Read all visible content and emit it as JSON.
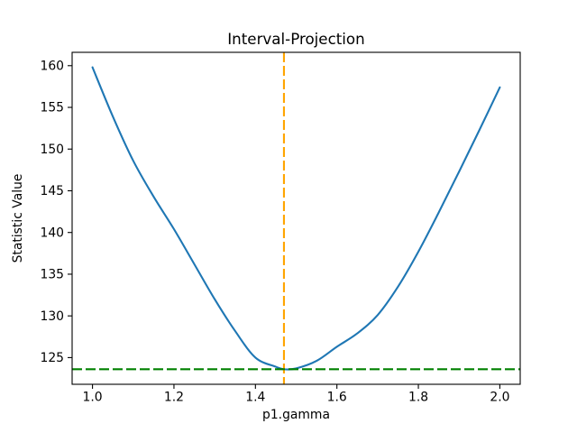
{
  "chart_data": {
    "type": "line",
    "title": "Interval-Projection",
    "xlabel": "p1.gamma",
    "ylabel": "Statistic Value",
    "xlim": [
      0.95,
      2.05
    ],
    "ylim": [
      121.8,
      161.6
    ],
    "xticks": [
      1.0,
      1.2,
      1.4,
      1.6,
      1.8,
      2.0
    ],
    "xtick_labels": [
      "1.0",
      "1.2",
      "1.4",
      "1.6",
      "1.8",
      "2.0"
    ],
    "yticks": [
      125,
      130,
      135,
      140,
      145,
      150,
      155,
      160
    ],
    "ytick_labels": [
      "125",
      "130",
      "135",
      "140",
      "145",
      "150",
      "155",
      "160"
    ],
    "grid": false,
    "legend": null,
    "colors": {
      "curve": "#1f77b4",
      "vline": "#ffa500",
      "hline": "#008000",
      "spine": "#000000",
      "background": "#ffffff"
    },
    "series": [
      {
        "name": "profile-statistic-curve",
        "color": "#1f77b4",
        "style": "solid",
        "x": [
          1.0,
          1.05,
          1.1,
          1.15,
          1.2,
          1.25,
          1.3,
          1.35,
          1.4,
          1.45,
          1.47,
          1.5,
          1.55,
          1.6,
          1.65,
          1.7,
          1.75,
          1.8,
          1.85,
          1.9,
          1.95,
          2.0
        ],
        "y": [
          159.8,
          153.9,
          148.6,
          144.3,
          140.4,
          136.2,
          132.0,
          128.2,
          125.0,
          123.9,
          123.6,
          123.7,
          124.6,
          126.3,
          127.9,
          130.1,
          133.5,
          137.7,
          142.4,
          147.3,
          152.3,
          157.4
        ]
      }
    ],
    "vline": {
      "x": 1.47,
      "color": "#ffa500",
      "style": "dashed",
      "name": "interval-estimate-vline"
    },
    "hline": {
      "y": 123.6,
      "color": "#008000",
      "style": "dashed",
      "name": "threshold-hline"
    }
  }
}
